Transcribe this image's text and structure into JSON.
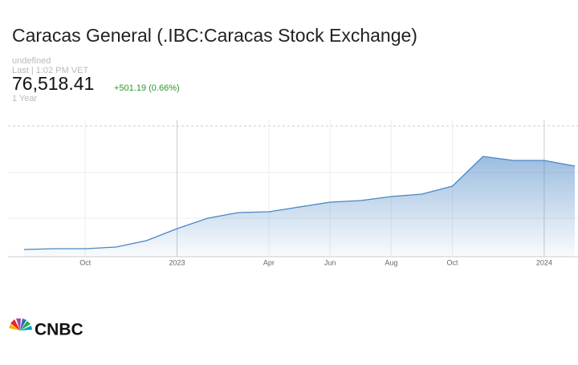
{
  "chart_data": {
    "type": "area",
    "title": "Caracas General (.IBC:Caracas Stock Exchange)",
    "status": "undefined",
    "last_time": "Last | 1:02 PM VET",
    "price": "76,518.41",
    "change": "+501.19 (0.66%)",
    "range": "1 Year",
    "logo": "CNBC",
    "x": [
      "2022-08",
      "2022-09",
      "2022-10",
      "2022-11",
      "2022-12",
      "2023-01",
      "2023-02",
      "2023-03",
      "2023-04",
      "2023-05",
      "2023-06",
      "2023-07",
      "2023-08",
      "2023-09",
      "2023-10",
      "2023-11",
      "2023-12",
      "2024-01",
      "2024-02"
    ],
    "series": [
      {
        "name": ".IBC",
        "color": "#4a86c5",
        "values": [
          24500,
          25000,
          25000,
          26000,
          30000,
          37500,
          44000,
          47500,
          48000,
          51000,
          54000,
          55000,
          57500,
          59000,
          64000,
          82500,
          80000,
          80000,
          76500
        ]
      }
    ],
    "xlim": [
      "2022-08",
      "2024-02"
    ],
    "xticks": [
      {
        "value": "2022-10",
        "label": "Oct"
      },
      {
        "value": "2023-01",
        "label": "2023"
      },
      {
        "value": "2023-04",
        "label": "Apr"
      },
      {
        "value": "2023-06",
        "label": "Jun"
      },
      {
        "value": "2023-08",
        "label": "Aug"
      },
      {
        "value": "2023-10",
        "label": "Oct"
      },
      {
        "value": "2024-01",
        "label": "2024"
      }
    ],
    "ylim": [
      20000,
      105000
    ],
    "grid": true
  }
}
